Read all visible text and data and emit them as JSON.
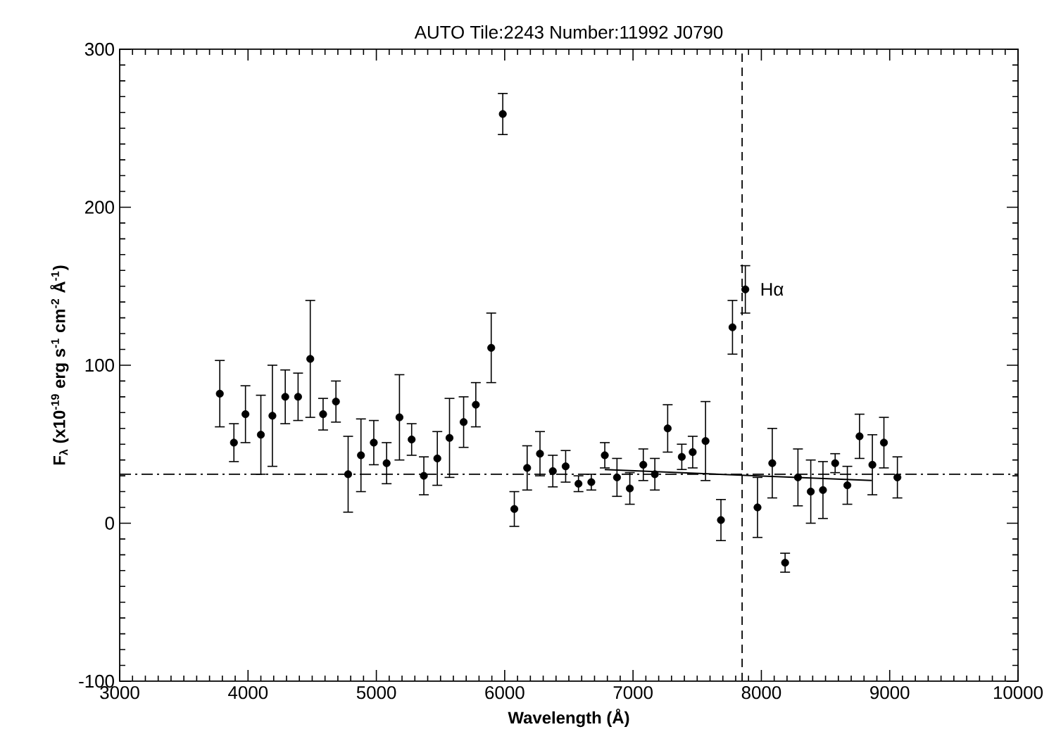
{
  "chart_data": {
    "type": "scatter",
    "title": "AUTO Tile:2243 Number:11992 J0790",
    "xlabel": "Wavelength (Å)",
    "ylabel": "F$_{λ}$ (x10$^{-19}$ erg s$^{-1}$ cm$^{-2}$ Å$^{-1}$)",
    "xlim": [
      3000,
      10000
    ],
    "ylim": [
      -100,
      300
    ],
    "xticks": [
      3000,
      4000,
      5000,
      6000,
      7000,
      8000,
      9000,
      10000
    ],
    "yticks": [
      -100,
      0,
      100,
      200,
      300
    ],
    "grid": false,
    "marker": "circle",
    "series": [
      {
        "color": "#000000",
        "x": [
          3780,
          3890,
          3980,
          4100,
          4190,
          4290,
          4390,
          4485,
          4585,
          4685,
          4780,
          4880,
          4980,
          5080,
          5180,
          5275,
          5370,
          5475,
          5570,
          5680,
          5775,
          5895,
          5985,
          6075,
          6175,
          6275,
          6375,
          6475,
          6575,
          6675,
          6780,
          6875,
          6975,
          7080,
          7170,
          7270,
          7380,
          7465,
          7565,
          7685,
          7775,
          7875,
          7970,
          8085,
          8185,
          8285,
          8385,
          8480,
          8575,
          8670,
          8765,
          8865,
          8955,
          9060
        ],
        "values": [
          82,
          51,
          69,
          56,
          68,
          80,
          80,
          104,
          69,
          77,
          31,
          43,
          51,
          38,
          67,
          53,
          30,
          41,
          54,
          64,
          75,
          111,
          259,
          9,
          35,
          44,
          33,
          36,
          25,
          26,
          43,
          29,
          22,
          37,
          31,
          60,
          42,
          45,
          52,
          2,
          124,
          148,
          10,
          38,
          -25,
          29,
          20,
          21,
          38,
          24,
          55,
          37,
          51,
          29
        ],
        "errors": [
          21,
          12,
          18,
          25,
          32,
          17,
          15,
          37,
          10,
          13,
          24,
          23,
          14,
          13,
          27,
          10,
          12,
          17,
          25,
          16,
          14,
          22,
          13,
          11,
          14,
          14,
          10,
          10,
          5,
          5,
          8,
          12,
          10,
          10,
          10,
          15,
          8,
          10,
          25,
          13,
          17,
          15,
          19,
          22,
          6,
          18,
          20,
          18,
          6,
          12,
          14,
          19,
          16,
          13
        ]
      },
      {
        "type": "line",
        "color": "#000000",
        "marker": "none",
        "line_style": "solid",
        "x": [
          6780,
          8860
        ],
        "values": [
          34,
          27
        ]
      }
    ],
    "ref_lines": [
      {
        "axis": "y",
        "value": 31,
        "color": "#000000",
        "line_style": "dashdot"
      },
      {
        "axis": "x",
        "value": 7850,
        "color": "#000000",
        "line_style": "dashed"
      }
    ],
    "annotations": [
      {
        "text": "Hα",
        "x": 7875,
        "y": 148
      }
    ]
  }
}
